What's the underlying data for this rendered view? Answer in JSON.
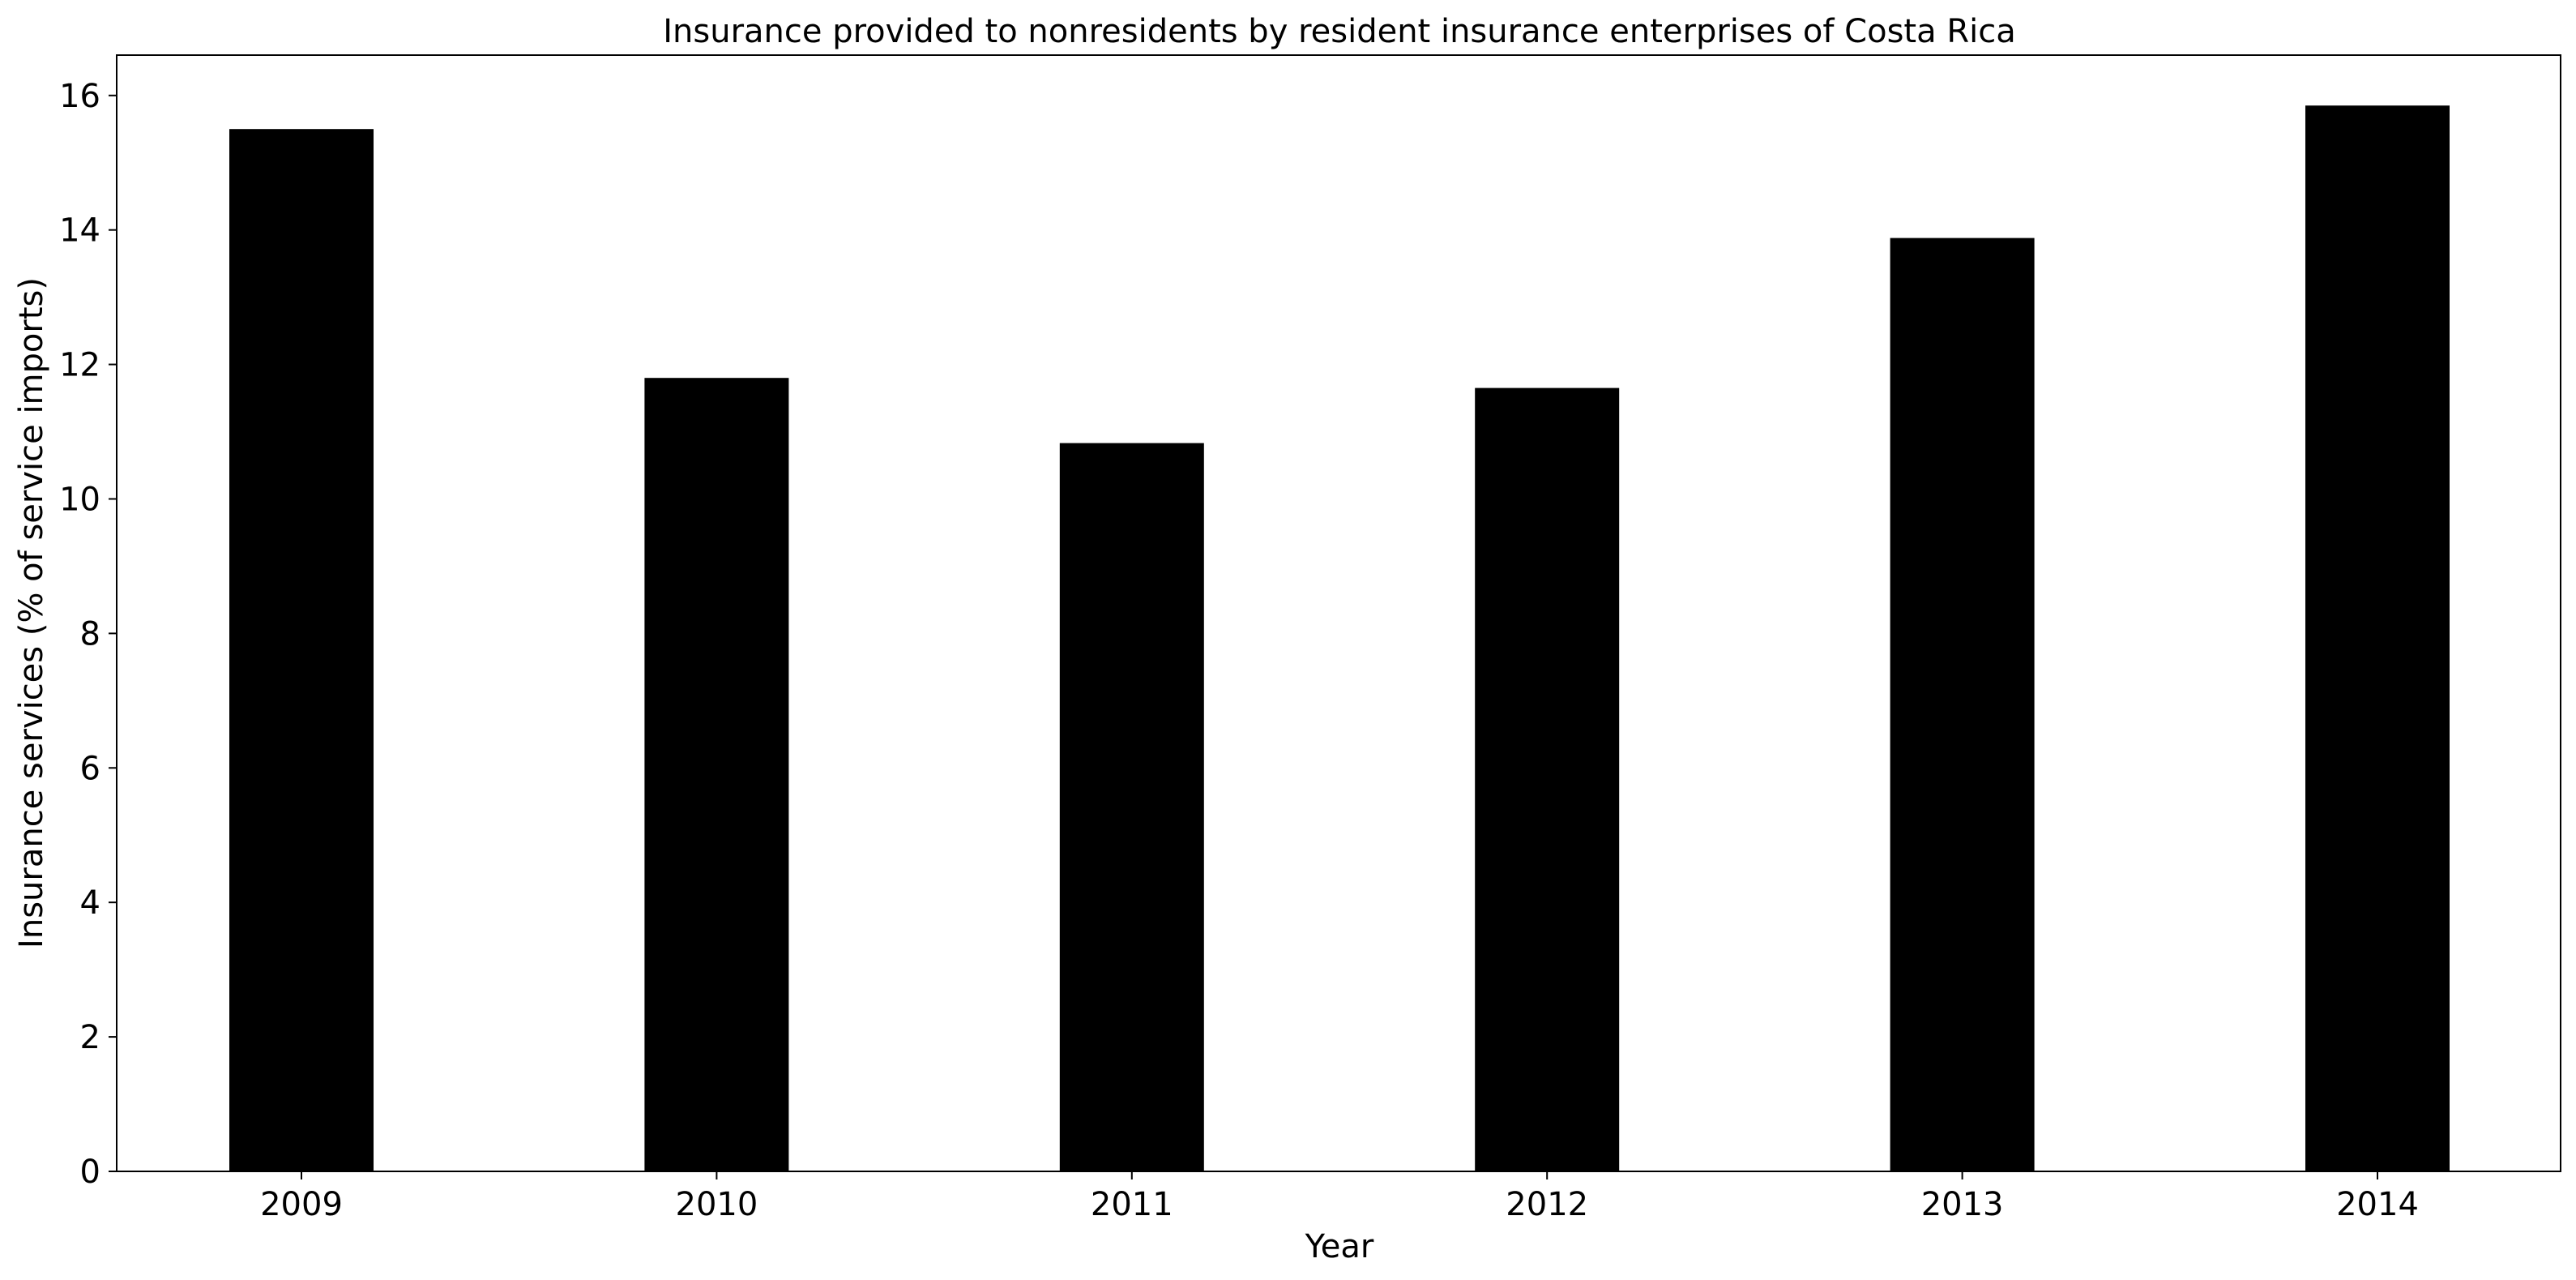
{
  "chart_data": {
    "type": "bar",
    "title": "Insurance provided to nonresidents by resident insurance enterprises of Costa Rica",
    "xlabel": "Year",
    "ylabel": "Insurance services (% of service imports)",
    "categories": [
      "2009",
      "2010",
      "2011",
      "2012",
      "2013",
      "2014"
    ],
    "values": [
      15.5,
      11.8,
      10.83,
      11.65,
      13.88,
      15.85
    ],
    "ylim": [
      0,
      16.6
    ],
    "yticks": [
      0,
      2,
      4,
      6,
      8,
      10,
      12,
      14,
      16
    ],
    "ytick_labels": [
      "0",
      "2",
      "4",
      "6",
      "8",
      "10",
      "12",
      "14",
      "16"
    ],
    "bar_color": "#000000",
    "grid": false,
    "legend": "none"
  }
}
